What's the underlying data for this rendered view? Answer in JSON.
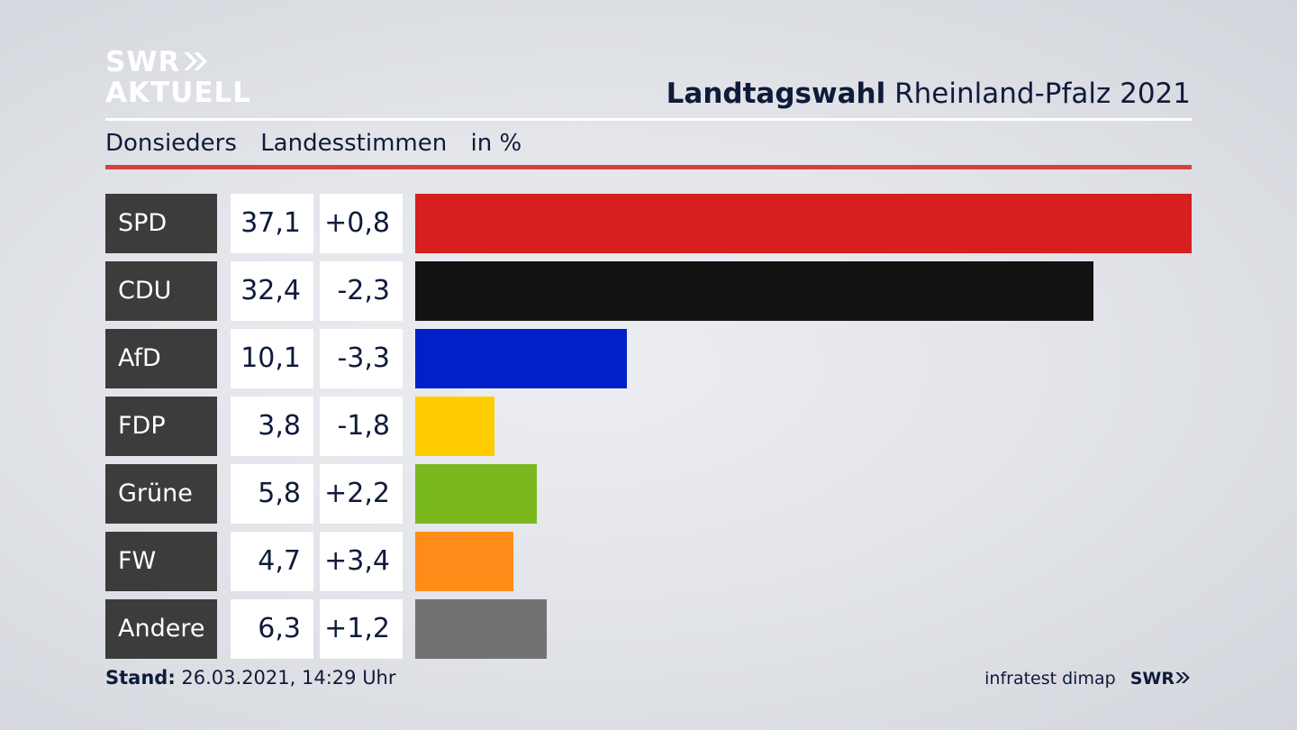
{
  "logo": {
    "line1": "SWR",
    "line2": "AKTUELL"
  },
  "header": {
    "title_bold": "Landtagswahl",
    "title_rest": "Rheinland-Pfalz 2021"
  },
  "subtitle": {
    "place": "Donsieders",
    "type": "Landesstimmen",
    "unit": "in %"
  },
  "colors": {
    "accent_red_line": "#d0443c",
    "label_bg": "#3c3c3c"
  },
  "chart_data": {
    "type": "bar",
    "orientation": "horizontal",
    "categories": [
      "SPD",
      "CDU",
      "AfD",
      "FDP",
      "Grüne",
      "FW",
      "Andere"
    ],
    "values": [
      37.1,
      32.4,
      10.1,
      3.8,
      5.8,
      4.7,
      6.3
    ],
    "value_labels": [
      "37,1",
      "32,4",
      "10,1",
      "3,8",
      "5,8",
      "4,7",
      "6,3"
    ],
    "changes": [
      0.8,
      -2.3,
      -3.3,
      -1.8,
      2.2,
      3.4,
      1.2
    ],
    "change_labels": [
      "+0,8",
      "-2,3",
      "-3,3",
      "-1,8",
      "+2,2",
      "+3,4",
      "+1,2"
    ],
    "colors": [
      "#d61f1f",
      "#121212",
      "#0021c7",
      "#ffcc00",
      "#7ab91e",
      "#ff8c19",
      "#727272"
    ],
    "xlim": [
      0,
      37.1
    ]
  },
  "footer": {
    "stand_label": "Stand:",
    "stand_value": "26.03.2021, 14:29 Uhr",
    "source": "infratest dimap",
    "brand": "SWR"
  }
}
